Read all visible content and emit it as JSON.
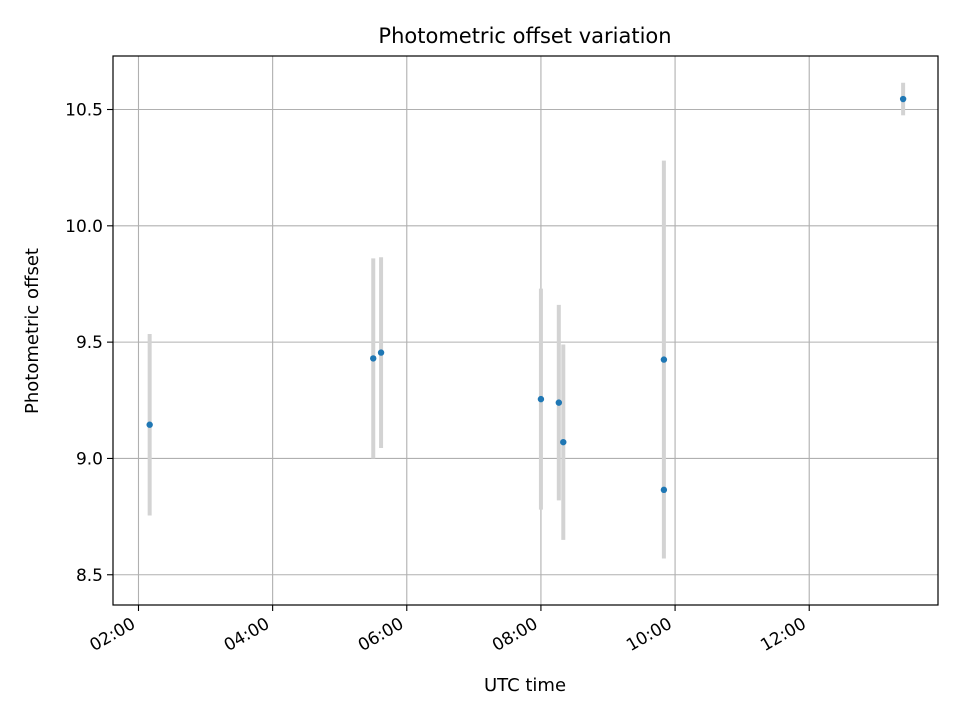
{
  "chart_data": {
    "type": "scatter",
    "title": "Photometric offset variation",
    "xlabel": "UTC time",
    "ylabel": "Photometric offset",
    "grid": true,
    "x_ticks": [
      "02:00",
      "04:00",
      "06:00",
      "08:00",
      "10:00",
      "12:00"
    ],
    "x_tick_hours": [
      2,
      4,
      6,
      8,
      10,
      12
    ],
    "y_ticks": [
      8.5,
      9.0,
      9.5,
      10.0,
      10.5
    ],
    "xlim_hours": [
      1.62,
      13.92
    ],
    "ylim": [
      8.37,
      10.73
    ],
    "point_color": "#1f77b4",
    "errorbar_color": "#d3d3d3",
    "points": [
      {
        "t": "02:10",
        "y": 9.145,
        "err": 0.39
      },
      {
        "t": "05:30",
        "y": 9.43,
        "err": 0.43
      },
      {
        "t": "05:37",
        "y": 9.455,
        "err": 0.41
      },
      {
        "t": "08:00",
        "y": 9.255,
        "err": 0.475
      },
      {
        "t": "08:16",
        "y": 9.24,
        "err": 0.42
      },
      {
        "t": "08:20",
        "y": 9.07,
        "err": 0.42
      },
      {
        "t": "09:50",
        "y": 9.425,
        "err": 0.855
      },
      {
        "t": "09:50",
        "y": 8.865,
        "err": 0.0
      },
      {
        "t": "13:24",
        "y": 10.545,
        "err": 0.07
      }
    ]
  }
}
